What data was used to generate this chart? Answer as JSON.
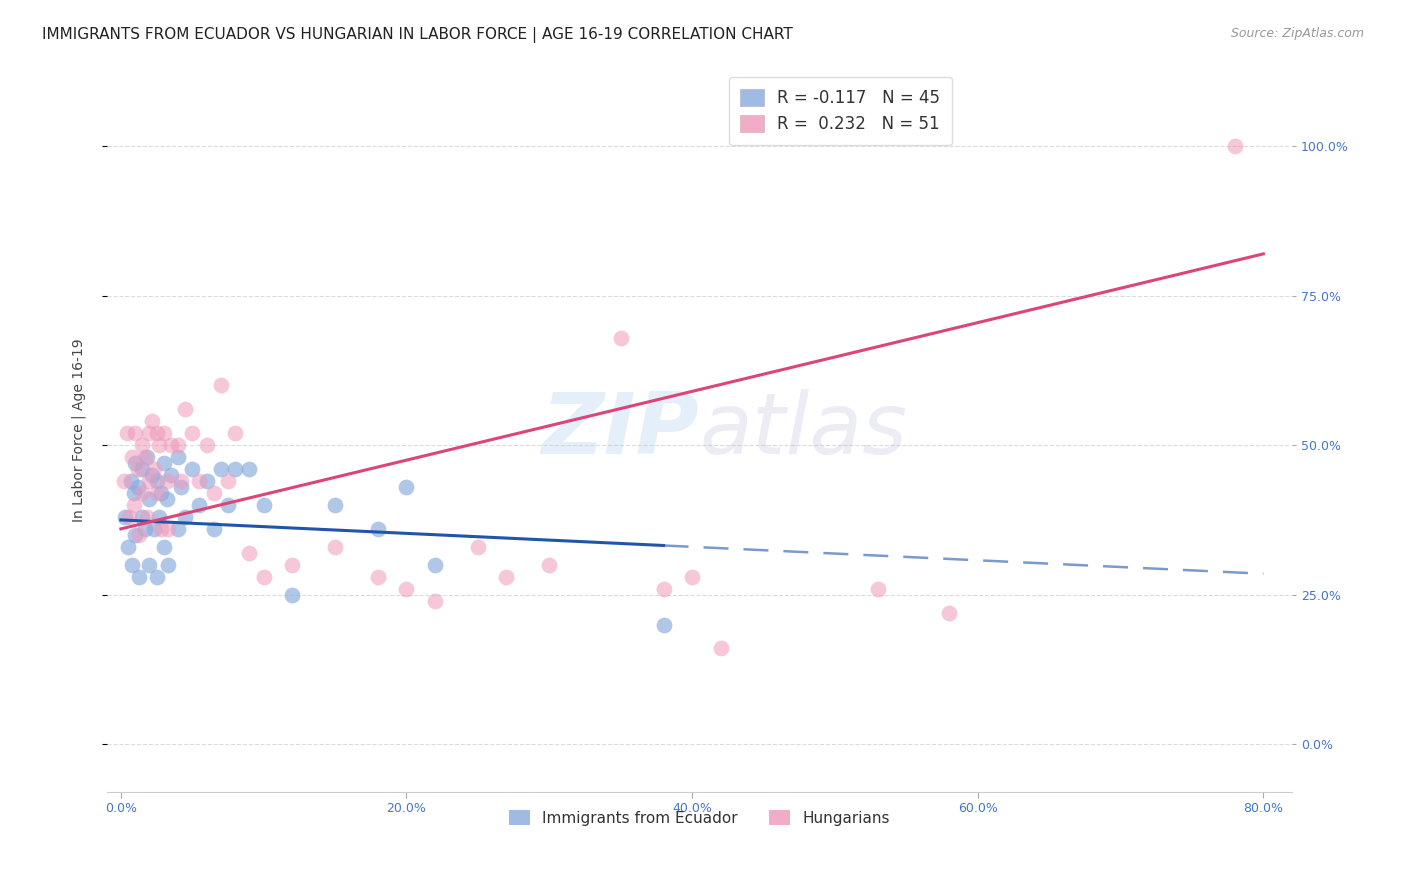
{
  "title": "IMMIGRANTS FROM ECUADOR VS HUNGARIAN IN LABOR FORCE | AGE 16-19 CORRELATION CHART",
  "source_text": "Source: ZipAtlas.com",
  "ylabel": "In Labor Force | Age 16-19",
  "xlim": [
    -0.01,
    0.82
  ],
  "ylim": [
    -0.08,
    1.13
  ],
  "x_tick_vals": [
    0.0,
    0.2,
    0.4,
    0.6,
    0.8
  ],
  "x_tick_labels": [
    "0.0%",
    "20.0%",
    "40.0%",
    "60.0%",
    "80.0%"
  ],
  "y_tick_vals": [
    0.0,
    0.25,
    0.5,
    0.75,
    1.0
  ],
  "y_tick_labels": [
    "0.0%",
    "25.0%",
    "50.0%",
    "75.0%",
    "100.0%"
  ],
  "ecuador_color": "#88aadd",
  "hungarian_color": "#ee99bb",
  "ecuador_line_color": "#2255aa",
  "hungarian_line_color": "#dd4477",
  "grid_color": "#cccccc",
  "background_color": "#ffffff",
  "ecuador_x": [
    0.003,
    0.005,
    0.007,
    0.008,
    0.009,
    0.01,
    0.01,
    0.012,
    0.013,
    0.015,
    0.015,
    0.017,
    0.018,
    0.02,
    0.02,
    0.022,
    0.023,
    0.025,
    0.025,
    0.027,
    0.028,
    0.03,
    0.03,
    0.032,
    0.033,
    0.035,
    0.04,
    0.04,
    0.042,
    0.045,
    0.05,
    0.055,
    0.06,
    0.065,
    0.07,
    0.075,
    0.08,
    0.09,
    0.1,
    0.12,
    0.15,
    0.18,
    0.2,
    0.22,
    0.38
  ],
  "ecuador_y": [
    0.38,
    0.33,
    0.44,
    0.3,
    0.42,
    0.47,
    0.35,
    0.43,
    0.28,
    0.46,
    0.38,
    0.36,
    0.48,
    0.41,
    0.3,
    0.45,
    0.36,
    0.44,
    0.28,
    0.38,
    0.42,
    0.47,
    0.33,
    0.41,
    0.3,
    0.45,
    0.48,
    0.36,
    0.43,
    0.38,
    0.46,
    0.4,
    0.44,
    0.36,
    0.46,
    0.4,
    0.46,
    0.46,
    0.4,
    0.25,
    0.4,
    0.36,
    0.43,
    0.3,
    0.2
  ],
  "hungarian_x": [
    0.002,
    0.004,
    0.006,
    0.008,
    0.009,
    0.01,
    0.012,
    0.013,
    0.015,
    0.015,
    0.017,
    0.018,
    0.02,
    0.02,
    0.022,
    0.023,
    0.025,
    0.025,
    0.027,
    0.028,
    0.03,
    0.032,
    0.033,
    0.035,
    0.04,
    0.042,
    0.045,
    0.05,
    0.055,
    0.06,
    0.065,
    0.07,
    0.075,
    0.08,
    0.09,
    0.1,
    0.12,
    0.15,
    0.18,
    0.2,
    0.22,
    0.25,
    0.27,
    0.3,
    0.35,
    0.38,
    0.4,
    0.42,
    0.53,
    0.58,
    0.78
  ],
  "hungarian_y": [
    0.44,
    0.52,
    0.38,
    0.48,
    0.4,
    0.52,
    0.46,
    0.35,
    0.5,
    0.42,
    0.48,
    0.38,
    0.52,
    0.44,
    0.54,
    0.46,
    0.52,
    0.42,
    0.5,
    0.36,
    0.52,
    0.44,
    0.36,
    0.5,
    0.5,
    0.44,
    0.56,
    0.52,
    0.44,
    0.5,
    0.42,
    0.6,
    0.44,
    0.52,
    0.32,
    0.28,
    0.3,
    0.33,
    0.28,
    0.26,
    0.24,
    0.33,
    0.28,
    0.3,
    0.68,
    0.26,
    0.28,
    0.16,
    0.26,
    0.22,
    1.0
  ],
  "eq_line_x0": 0.0,
  "eq_line_x_solid_end": 0.38,
  "eq_line_x1": 0.8,
  "eq_line_y0": 0.375,
  "eq_line_y1": 0.285,
  "hu_line_x0": 0.0,
  "hu_line_x1": 0.8,
  "hu_line_y0": 0.36,
  "hu_line_y1": 0.82,
  "legend_label_eq": "R = -0.117   N = 45",
  "legend_label_hu": "R =  0.232   N = 51",
  "bottom_legend_eq": "Immigrants from Ecuador",
  "bottom_legend_hu": "Hungarians",
  "title_fontsize": 11,
  "tick_fontsize": 9,
  "ylabel_fontsize": 10
}
